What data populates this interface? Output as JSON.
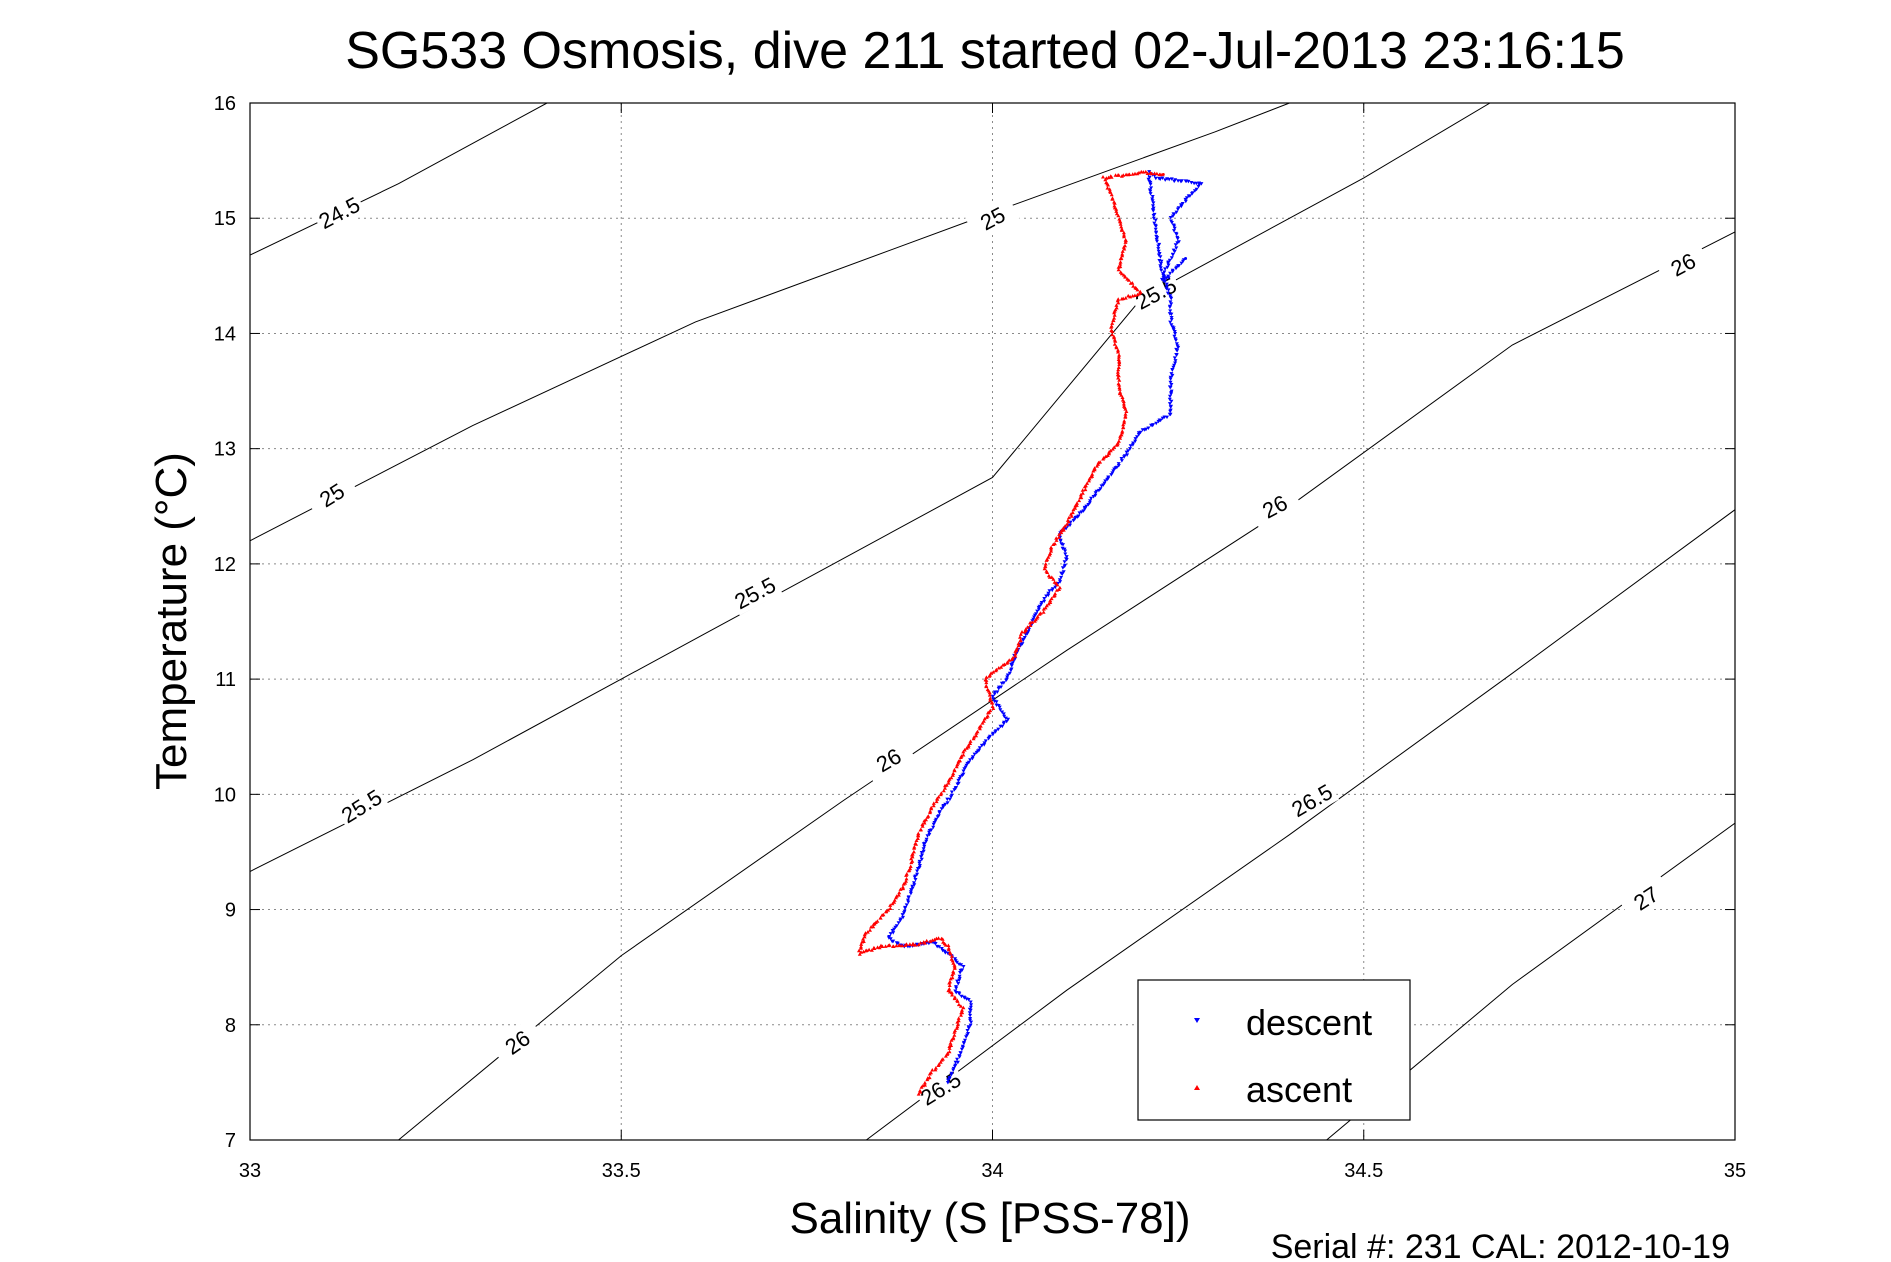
{
  "chart_data": {
    "type": "scatter",
    "title": "SG533 Osmosis, dive 211 started 02-Jul-2013 23:16:15",
    "xlabel": "Salinity (S [PSS-78])",
    "ylabel": "Temperature (°C)",
    "xlim": [
      33,
      35
    ],
    "ylim": [
      7,
      16
    ],
    "x_ticks": [
      "33",
      "33.5",
      "34",
      "34.5",
      "35"
    ],
    "y_ticks": [
      "7",
      "8",
      "9",
      "10",
      "11",
      "12",
      "13",
      "14",
      "15",
      "16"
    ],
    "grid": true,
    "footer": "Serial #: 231  CAL: 2012-10-19",
    "legend": {
      "placement": "bottom-right",
      "entries": [
        "descent",
        "ascent"
      ]
    },
    "colors": {
      "descent": "#0000ff",
      "ascent": "#ff0000",
      "contour": "#000000"
    },
    "contours": [
      {
        "label": "24.5",
        "points": [
          [
            33,
            14.68
          ],
          [
            33.2,
            15.3
          ],
          [
            33.4,
            16.0
          ]
        ]
      },
      {
        "label": "25",
        "points": [
          [
            33,
            12.2
          ],
          [
            33.3,
            13.2
          ],
          [
            33.6,
            14.1
          ],
          [
            34,
            15.05
          ],
          [
            34.3,
            15.75
          ],
          [
            34.4,
            16.0
          ]
        ]
      },
      {
        "label": "25.5",
        "points": [
          [
            33,
            9.33
          ],
          [
            33.3,
            10.3
          ],
          [
            33.6,
            11.35
          ],
          [
            34,
            12.75
          ],
          [
            34.2,
            14.3
          ],
          [
            34.5,
            15.35
          ],
          [
            34.67,
            16.0
          ]
        ]
      },
      {
        "label": "26",
        "points": [
          [
            33.2,
            7.0
          ],
          [
            33.5,
            8.6
          ],
          [
            33.8,
            9.95
          ],
          [
            34.1,
            11.25
          ],
          [
            34.4,
            12.5
          ],
          [
            34.7,
            13.9
          ],
          [
            35,
            14.88
          ]
        ]
      },
      {
        "label": "26.5",
        "points": [
          [
            33.83,
            7.0
          ],
          [
            34.1,
            8.3
          ],
          [
            34.4,
            9.65
          ],
          [
            34.7,
            11.05
          ],
          [
            35,
            12.47
          ]
        ]
      },
      {
        "label": "27",
        "points": [
          [
            34.45,
            7.0
          ],
          [
            34.7,
            8.35
          ],
          [
            35,
            9.75
          ]
        ]
      }
    ],
    "contour_labels": [
      {
        "text": "24.5",
        "x": 33.12,
        "y": 15.05,
        "angle": -28
      },
      {
        "text": "25",
        "x": 34.0,
        "y": 15.0,
        "angle": -28
      },
      {
        "text": "25",
        "x": 33.11,
        "y": 12.6,
        "angle": -32
      },
      {
        "text": "25.5",
        "x": 34.22,
        "y": 14.35,
        "angle": -28
      },
      {
        "text": "25.5",
        "x": 33.68,
        "y": 11.75,
        "angle": -28
      },
      {
        "text": "25.5",
        "x": 33.15,
        "y": 9.9,
        "angle": -32
      },
      {
        "text": "26",
        "x": 34.93,
        "y": 14.6,
        "angle": -28
      },
      {
        "text": "26",
        "x": 34.38,
        "y": 12.5,
        "angle": -28
      },
      {
        "text": "26",
        "x": 33.86,
        "y": 10.3,
        "angle": -30
      },
      {
        "text": "26",
        "x": 33.36,
        "y": 7.85,
        "angle": -35
      },
      {
        "text": "26.5",
        "x": 34.43,
        "y": 9.95,
        "angle": -30
      },
      {
        "text": "26.5",
        "x": 33.93,
        "y": 7.45,
        "angle": -32
      },
      {
        "text": "27",
        "x": 34.88,
        "y": 9.1,
        "angle": -33
      }
    ],
    "series": [
      {
        "name": "descent",
        "values": [
          [
            33.94,
            7.5
          ],
          [
            33.95,
            7.65
          ],
          [
            33.96,
            7.8
          ],
          [
            33.97,
            8.0
          ],
          [
            33.97,
            8.2
          ],
          [
            33.95,
            8.3
          ],
          [
            33.96,
            8.5
          ],
          [
            33.94,
            8.62
          ],
          [
            33.92,
            8.72
          ],
          [
            33.9,
            8.7
          ],
          [
            33.88,
            8.68
          ],
          [
            33.86,
            8.75
          ],
          [
            33.88,
            8.95
          ],
          [
            33.89,
            9.15
          ],
          [
            33.9,
            9.35
          ],
          [
            33.91,
            9.6
          ],
          [
            33.93,
            9.85
          ],
          [
            33.95,
            10.05
          ],
          [
            33.97,
            10.3
          ],
          [
            33.99,
            10.45
          ],
          [
            34.02,
            10.65
          ],
          [
            34.0,
            10.85
          ],
          [
            34.02,
            11.0
          ],
          [
            34.03,
            11.2
          ],
          [
            34.05,
            11.45
          ],
          [
            34.07,
            11.7
          ],
          [
            34.09,
            11.85
          ],
          [
            34.1,
            12.05
          ],
          [
            34.09,
            12.25
          ],
          [
            34.12,
            12.45
          ],
          [
            34.15,
            12.7
          ],
          [
            34.18,
            12.95
          ],
          [
            34.2,
            13.15
          ],
          [
            34.24,
            13.3
          ],
          [
            34.24,
            13.6
          ],
          [
            34.25,
            13.9
          ],
          [
            34.24,
            14.1
          ],
          [
            34.24,
            14.3
          ],
          [
            34.23,
            14.5
          ],
          [
            34.25,
            14.8
          ],
          [
            34.24,
            15.0
          ],
          [
            34.28,
            15.3
          ],
          [
            34.22,
            15.35
          ],
          [
            34.21,
            15.4
          ],
          [
            34.23,
            14.45
          ],
          [
            34.26,
            14.65
          ]
        ]
      },
      {
        "name": "ascent",
        "values": [
          [
            33.9,
            7.4
          ],
          [
            33.92,
            7.6
          ],
          [
            33.94,
            7.75
          ],
          [
            33.95,
            7.95
          ],
          [
            33.96,
            8.15
          ],
          [
            33.94,
            8.3
          ],
          [
            33.95,
            8.5
          ],
          [
            33.94,
            8.68
          ],
          [
            33.93,
            8.75
          ],
          [
            33.9,
            8.7
          ],
          [
            33.85,
            8.68
          ],
          [
            33.82,
            8.62
          ],
          [
            33.83,
            8.8
          ],
          [
            33.86,
            9.0
          ],
          [
            33.88,
            9.2
          ],
          [
            33.89,
            9.4
          ],
          [
            33.9,
            9.65
          ],
          [
            33.92,
            9.9
          ],
          [
            33.94,
            10.1
          ],
          [
            33.96,
            10.35
          ],
          [
            33.98,
            10.55
          ],
          [
            34.0,
            10.75
          ],
          [
            33.99,
            11.0
          ],
          [
            34.03,
            11.2
          ],
          [
            34.04,
            11.4
          ],
          [
            34.07,
            11.6
          ],
          [
            34.09,
            11.8
          ],
          [
            34.07,
            11.95
          ],
          [
            34.08,
            12.15
          ],
          [
            34.1,
            12.35
          ],
          [
            34.12,
            12.6
          ],
          [
            34.14,
            12.85
          ],
          [
            34.17,
            13.05
          ],
          [
            34.18,
            13.3
          ],
          [
            34.17,
            13.55
          ],
          [
            34.17,
            13.8
          ],
          [
            34.16,
            14.05
          ],
          [
            34.17,
            14.3
          ],
          [
            34.2,
            14.35
          ],
          [
            34.17,
            14.55
          ],
          [
            34.18,
            14.8
          ],
          [
            34.17,
            15.0
          ],
          [
            34.16,
            15.2
          ],
          [
            34.15,
            15.35
          ],
          [
            34.2,
            15.4
          ],
          [
            34.23,
            15.38
          ]
        ]
      }
    ]
  }
}
